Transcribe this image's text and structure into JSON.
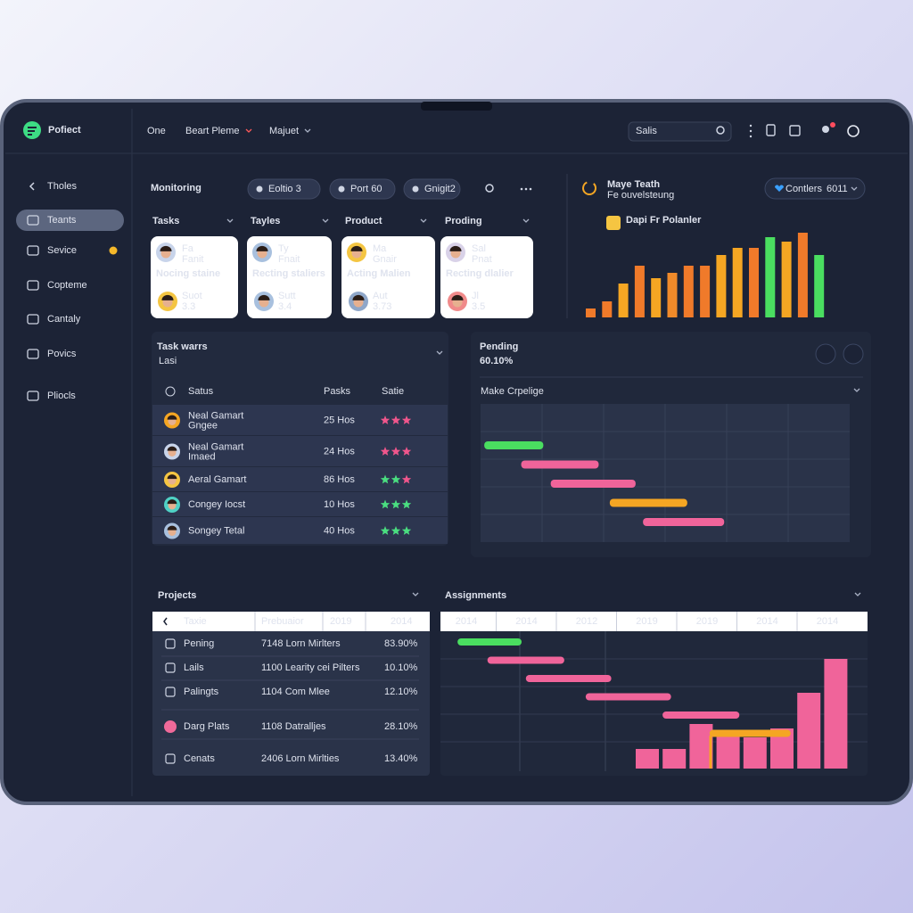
{
  "header": {
    "logo": "Pofiect",
    "nav": [
      "One",
      "Beart Pleme",
      "Majuet"
    ],
    "search": "Salis"
  },
  "sidebar": {
    "items": [
      "Tholes",
      "Teants",
      "Sevice",
      "Copteme",
      "Cantaly",
      "Povics",
      "Pliocls"
    ],
    "active": 1
  },
  "monitoring": {
    "title": "Monitoring",
    "filters": [
      "Eoltio 3",
      "Port 60",
      "Gnigit2"
    ],
    "columns": [
      {
        "title": "Tasks",
        "card": {
          "name": "Fa",
          "role": "Fanit",
          "label": "Nocing staine",
          "person": "Suot",
          "score": "3.3"
        }
      },
      {
        "title": "Tayles",
        "card": {
          "name": "Ty",
          "role": "Fnait",
          "label": "Recting staliers",
          "person": "Sutt",
          "score": "3.4"
        }
      },
      {
        "title": "Product",
        "card": {
          "name": "Ma",
          "role": "Gnair",
          "label": "Acting Malien",
          "person": "Aut",
          "score": "3.73"
        }
      },
      {
        "title": "Proding",
        "card": {
          "name": "Sal",
          "role": "Pnat",
          "label": "Recting dlalier",
          "person": "Jl",
          "score": "3.5"
        }
      }
    ]
  },
  "trend": {
    "title": "Maye Teath",
    "subtitle": "Fe ouvelsteung",
    "button": "Contlers",
    "button_value": "6011",
    "legend": "Dapi Fr Polanler",
    "bars": [
      {
        "value": 10,
        "color": "#f07a2a"
      },
      {
        "value": 18,
        "color": "#f07a2a"
      },
      {
        "value": 38,
        "color": "#f5a623"
      },
      {
        "value": 58,
        "color": "#f07a2a"
      },
      {
        "value": 44,
        "color": "#f5a623"
      },
      {
        "value": 50,
        "color": "#f08a2a"
      },
      {
        "value": 58,
        "color": "#f07a2a"
      },
      {
        "value": 58,
        "color": "#f07a2a"
      },
      {
        "value": 70,
        "color": "#f5a623"
      },
      {
        "value": 78,
        "color": "#f5a623"
      },
      {
        "value": 78,
        "color": "#f07a2a"
      },
      {
        "value": 90,
        "color": "#4ade60"
      },
      {
        "value": 85,
        "color": "#f5a623"
      },
      {
        "value": 95,
        "color": "#f07a2a"
      },
      {
        "value": 70,
        "color": "#4ade60"
      }
    ]
  },
  "task_wars": {
    "title": "Task warrs",
    "subtitle": "Lasi",
    "headers": [
      "Satus",
      "Pasks",
      "Satie"
    ],
    "rows": [
      {
        "name": "Neal Gamart",
        "sub": "Gngee",
        "hours": "25 Hos",
        "stars": [
          "#f0568c",
          "#f0568c",
          "#f0568c"
        ]
      },
      {
        "name": "Neal Gamart",
        "sub": "Imaed",
        "hours": "24 Hos",
        "stars": [
          "#f0568c",
          "#f0568c",
          "#f0568c"
        ]
      },
      {
        "name": "Aeral Gamart",
        "sub": null,
        "hours": "86 Hos",
        "stars": [
          "#4ade80",
          "#4ade80",
          "#f0568c"
        ]
      },
      {
        "name": "Congey Iocst",
        "sub": null,
        "hours": "10 Hos",
        "stars": [
          "#4ade80",
          "#4ade80",
          "#4ade80"
        ]
      },
      {
        "name": "Songey Tetal",
        "sub": null,
        "hours": "40 Hos",
        "stars": [
          "#4ade80",
          "#4ade80",
          "#4ade80"
        ]
      }
    ]
  },
  "pending": {
    "title": "Pending",
    "value": "60.10%",
    "subtitle": "Make Crpelige",
    "tasks": [
      {
        "start": 1,
        "end": 17,
        "color": "#4ade60"
      },
      {
        "start": 11,
        "end": 32,
        "color": "#f0649a"
      },
      {
        "start": 19,
        "end": 42,
        "color": "#f0649a"
      },
      {
        "start": 35,
        "end": 56,
        "color": "#f5a623"
      },
      {
        "start": 44,
        "end": 66,
        "color": "#f0649a"
      }
    ]
  },
  "projects": {
    "title": "Projects",
    "headers": [
      "Taxie",
      "Prebuaior",
      "2019",
      "2014"
    ],
    "rows": [
      {
        "name": "Pening",
        "desc": "7148 Lorn Mirlters",
        "pct": "83.90%"
      },
      {
        "name": "Lails",
        "desc": "1100 Learity cei Pilters",
        "pct": "10.10%"
      },
      {
        "name": "Palingts",
        "desc": "1104 Com Mlee",
        "pct": "12.10%"
      },
      {
        "name": "Darg Plats",
        "desc": "1108 Datralljes",
        "pct": "28.10%"
      },
      {
        "name": "Cenats",
        "desc": "2406 Lorn Mirlties",
        "pct": "13.40%"
      }
    ]
  },
  "assignments": {
    "title": "Assignments",
    "years": [
      "2014",
      "2014",
      "2012",
      "2019",
      "2019",
      "2014",
      "2014"
    ],
    "tasks": [
      {
        "start": 4,
        "end": 19,
        "color": "#4ade60"
      },
      {
        "start": 11,
        "end": 29,
        "color": "#f0649a"
      },
      {
        "start": 20,
        "end": 40,
        "color": "#f0649a"
      },
      {
        "start": 34,
        "end": 54,
        "color": "#f0649a"
      },
      {
        "start": 52,
        "end": 70,
        "color": "#f0649a"
      },
      {
        "start": 63,
        "end": 82,
        "color": "#f5a623"
      }
    ],
    "bars": [
      22,
      22,
      50,
      40,
      35,
      45,
      85,
      123
    ],
    "bar_color": "#f0649a"
  }
}
